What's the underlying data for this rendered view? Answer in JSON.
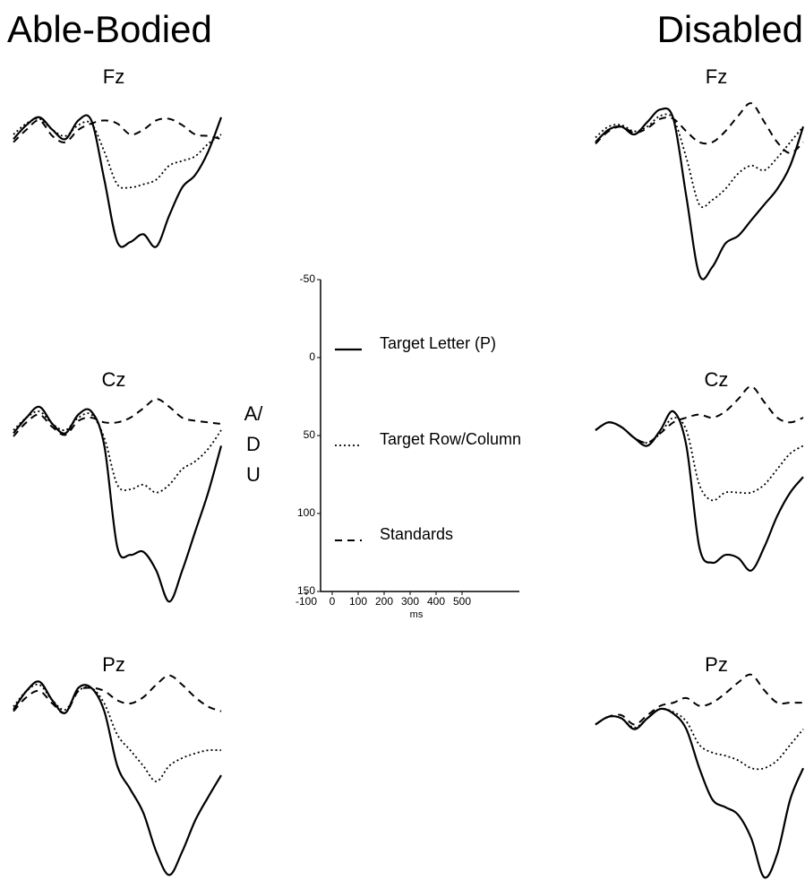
{
  "titles": [
    "Able-Bodied",
    "Disabled"
  ],
  "chart_data": [
    {
      "type": "line",
      "title": "Fz",
      "x": [
        -100,
        -50,
        0,
        50,
        100,
        150,
        200,
        250,
        300,
        350,
        400,
        450,
        500,
        550,
        600,
        650,
        700
      ],
      "series": [
        {
          "values": [
            3,
            -6,
            -11,
            -3,
            3,
            -9,
            -9,
            29,
            69,
            69,
            64,
            72,
            52,
            34,
            26,
            11,
            -11
          ]
        },
        {
          "values": [
            0,
            -7,
            -10,
            -3,
            1,
            -6,
            -7,
            11,
            32,
            34,
            32,
            29,
            20,
            17,
            14,
            6,
            0
          ]
        },
        {
          "values": [
            5,
            -3,
            -9,
            1,
            5,
            -3,
            -7,
            -9,
            -7,
            0,
            -3,
            -9,
            -10,
            -6,
            0,
            1,
            3
          ]
        }
      ]
    },
    {
      "type": "line",
      "title": "Cz",
      "x": [
        -100,
        -50,
        0,
        50,
        100,
        150,
        200,
        250,
        300,
        350,
        400,
        450,
        500,
        550,
        600,
        650,
        700
      ],
      "series": [
        {
          "values": [
            2,
            -8,
            -15,
            -4,
            2,
            -10,
            -12,
            10,
            75,
            80,
            78,
            90,
            110,
            90,
            65,
            40,
            10
          ]
        },
        {
          "values": [
            0,
            -8,
            -12,
            -4,
            0,
            -8,
            -10,
            5,
            35,
            38,
            35,
            40,
            35,
            25,
            20,
            12,
            0
          ]
        },
        {
          "values": [
            4,
            -5,
            -10,
            -2,
            3,
            -6,
            -8,
            -5,
            -5,
            -8,
            -14,
            -20,
            -15,
            -8,
            -6,
            -5,
            -4
          ]
        }
      ]
    },
    {
      "type": "line",
      "title": "Pz",
      "x": [
        -100,
        -50,
        0,
        50,
        100,
        150,
        200,
        250,
        300,
        350,
        400,
        450,
        500,
        550,
        600,
        650,
        700
      ],
      "series": [
        {
          "values": [
            4,
            -8,
            -14,
            -2,
            6,
            -10,
            -10,
            5,
            40,
            55,
            70,
            95,
            110,
            95,
            75,
            60,
            46
          ]
        },
        {
          "values": [
            2,
            -8,
            -12,
            -2,
            4,
            -8,
            -10,
            0,
            20,
            30,
            40,
            50,
            40,
            35,
            32,
            30,
            30
          ]
        },
        {
          "values": [
            5,
            -4,
            -8,
            0,
            6,
            -8,
            -10,
            -8,
            -2,
            0,
            -4,
            -12,
            -18,
            -12,
            -4,
            2,
            5
          ]
        }
      ]
    },
    {
      "type": "line",
      "title": "Fz",
      "x": [
        -100,
        -50,
        0,
        50,
        100,
        150,
        200,
        250,
        300,
        350,
        400,
        450,
        500,
        550,
        600,
        650,
        700
      ],
      "series": [
        {
          "values": [
            5,
            -3,
            -5,
            0,
            -8,
            -16,
            -10,
            40,
            90,
            85,
            70,
            65,
            55,
            45,
            35,
            20,
            -5
          ]
        },
        {
          "values": [
            2,
            -5,
            -6,
            -2,
            -5,
            -12,
            -10,
            15,
            45,
            42,
            35,
            25,
            20,
            23,
            15,
            5,
            -5
          ]
        },
        {
          "values": [
            6,
            -2,
            -5,
            -1,
            -4,
            -10,
            -10,
            -2,
            5,
            5,
            -2,
            -12,
            -20,
            -8,
            5,
            12,
            5
          ]
        }
      ]
    },
    {
      "type": "line",
      "title": "Cz",
      "x": [
        -100,
        -50,
        0,
        50,
        100,
        150,
        200,
        250,
        300,
        350,
        400,
        450,
        500,
        550,
        600,
        650,
        700
      ],
      "series": [
        {
          "values": [
            0,
            -5,
            -2,
            5,
            10,
            0,
            -12,
            10,
            75,
            85,
            80,
            82,
            90,
            75,
            55,
            40,
            30
          ]
        },
        {
          "values": [
            0,
            -5,
            -2,
            5,
            8,
            2,
            -8,
            0,
            35,
            45,
            40,
            40,
            40,
            35,
            25,
            15,
            10
          ]
        },
        {
          "values": [
            0,
            -5,
            -2,
            5,
            8,
            2,
            -5,
            -8,
            -10,
            -8,
            -12,
            -20,
            -28,
            -18,
            -8,
            -5,
            -8
          ]
        }
      ]
    },
    {
      "type": "line",
      "title": "Pz",
      "x": [
        -100,
        -50,
        0,
        50,
        100,
        150,
        200,
        250,
        300,
        350,
        400,
        450,
        500,
        550,
        600,
        650,
        700
      ],
      "series": [
        {
          "values": [
            2,
            -3,
            -2,
            5,
            -2,
            -8,
            -5,
            5,
            30,
            50,
            55,
            60,
            75,
            100,
            85,
            50,
            30
          ]
        },
        {
          "values": [
            2,
            -3,
            -2,
            4,
            -2,
            -8,
            -6,
            0,
            15,
            20,
            22,
            25,
            30,
            30,
            25,
            15,
            5
          ]
        },
        {
          "values": [
            2,
            -3,
            -4,
            2,
            -4,
            -10,
            -12,
            -15,
            -10,
            -12,
            -18,
            -25,
            -30,
            -20,
            -12,
            -12,
            -12
          ]
        }
      ]
    },
    {
      "type": "scale",
      "ylabel": [
        "A/",
        "D",
        "U"
      ],
      "xlabel": "ms",
      "ylim": [
        -50,
        150
      ],
      "yticks": [
        -50,
        0,
        50,
        100,
        150
      ],
      "y_inverted": true,
      "xlim": [
        -100,
        700
      ],
      "xticks": [
        -100,
        0,
        100,
        200,
        300,
        400,
        500
      ],
      "series": [
        {
          "name": "Target Letter (P)",
          "color": "#000000",
          "style": "solid"
        },
        {
          "name": "Target Row/Column",
          "color": "#000000",
          "style": "dotted"
        },
        {
          "name": "Standards",
          "color": "#000000",
          "style": "dashed"
        }
      ]
    }
  ]
}
